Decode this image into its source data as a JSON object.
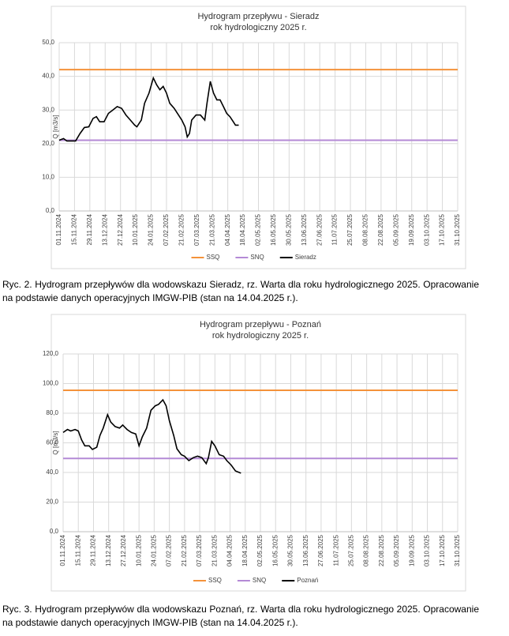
{
  "chart_data": [
    {
      "type": "line",
      "title": "Hydrogram przepływu - Sieradz",
      "subtitle": "rok hydrologiczny 2025 r.",
      "y_label": "Q [m3/s]",
      "xlim": [
        "01.11.2024",
        "31.10.2025"
      ],
      "xticks": [
        "01.11.2024",
        "15.11.2024",
        "29.11.2024",
        "13.12.2024",
        "27.12.2024",
        "10.01.2025",
        "24.01.2025",
        "07.02.2025",
        "21.02.2025",
        "07.03.2025",
        "21.03.2025",
        "04.04.2025",
        "18.04.2025",
        "02.05.2025",
        "16.05.2025",
        "30.05.2025",
        "13.06.2025",
        "27.06.2025",
        "11.07.2025",
        "25.07.2025",
        "08.08.2025",
        "22.08.2025",
        "05.09.2025",
        "19.09.2025",
        "03.10.2025",
        "17.10.2025",
        "31.10.2025"
      ],
      "ylim": [
        0,
        50
      ],
      "yticks": [
        {
          "value": 0,
          "label": "0,0"
        },
        {
          "value": 10,
          "label": "10,0"
        },
        {
          "value": 20,
          "label": "20,0"
        },
        {
          "value": 30,
          "label": "30,0"
        },
        {
          "value": 40,
          "label": "40,0"
        },
        {
          "value": 50,
          "label": "50,0"
        }
      ],
      "grid": true,
      "x": [
        "01.11.2024",
        "05.11.2024",
        "08.11.2024",
        "12.11.2024",
        "16.11.2024",
        "20.11.2024",
        "24.11.2024",
        "28.11.2024",
        "02.12.2024",
        "05.12.2024",
        "08.12.2024",
        "12.12.2024",
        "16.12.2024",
        "20.12.2024",
        "24.12.2024",
        "28.12.2024",
        "01.01.2025",
        "05.01.2025",
        "09.01.2025",
        "11.01.2025",
        "15.01.2025",
        "18.01.2025",
        "22.01.2025",
        "26.01.2025",
        "29.01.2025",
        "01.02.2025",
        "04.02.2025",
        "07.02.2025",
        "10.02.2025",
        "14.02.2025",
        "18.02.2025",
        "21.02.2025",
        "24.02.2025",
        "26.02.2025",
        "28.02.2025",
        "02.03.2025",
        "06.03.2025",
        "10.03.2025",
        "14.03.2025",
        "16.03.2025",
        "19.03.2025",
        "22.03.2025",
        "25.03.2025",
        "28.03.2025",
        "31.03.2025",
        "03.04.2025",
        "06.04.2025",
        "09.04.2025",
        "11.04.2025",
        "14.04.2025"
      ],
      "series": [
        {
          "name": "SSQ",
          "color": "#f4923a",
          "value": 42
        },
        {
          "name": "SNQ",
          "color": "#b48ad6",
          "value": 21
        },
        {
          "name": "Sieradz",
          "color": "#000000",
          "values": [
            21,
            21.5,
            20.8,
            20.8,
            20.8,
            23,
            24.8,
            25,
            27.5,
            28,
            26.5,
            26.5,
            29,
            30,
            31,
            30.5,
            28.5,
            27,
            25.5,
            25,
            27,
            32,
            35,
            39.5,
            37.5,
            36,
            37,
            35,
            32,
            30.5,
            28.5,
            27,
            25,
            22,
            23,
            27,
            28.5,
            28.5,
            27,
            32,
            38.5,
            35,
            33,
            33,
            31,
            29,
            28,
            26.5,
            25.5,
            25.5
          ]
        }
      ],
      "caption": "Ryc. 2. Hydrogram przepływów dla wodowskazu Sieradz, rz. Warta dla roku hydrologicznego 2025. Opracowanie na podstawie danych operacyjnych IMGW-PIB (stan na 14.04.2025 r.)."
    },
    {
      "type": "line",
      "title": "Hydrogram przepływu - Poznań",
      "subtitle": "rok hydrologiczny 2025 r.",
      "y_label": "Q [m3/s]",
      "xlim": [
        "01.11.2024",
        "31.10.2025"
      ],
      "xticks": [
        "01.11.2024",
        "15.11.2024",
        "29.11.2024",
        "13.12.2024",
        "27.12.2024",
        "10.01.2025",
        "24.01.2025",
        "07.02.2025",
        "21.02.2025",
        "07.03.2025",
        "21.03.2025",
        "04.04.2025",
        "18.04.2025",
        "02.05.2025",
        "16.05.2025",
        "30.05.2025",
        "13.06.2025",
        "27.06.2025",
        "11.07.2025",
        "25.07.2025",
        "08.08.2025",
        "22.08.2025",
        "05.09.2025",
        "19.09.2025",
        "03.10.2025",
        "17.10.2025",
        "31.10.2025"
      ],
      "ylim": [
        0,
        120
      ],
      "yticks": [
        {
          "value": 0,
          "label": "0,0"
        },
        {
          "value": 20,
          "label": "20,0"
        },
        {
          "value": 40,
          "label": "40,0"
        },
        {
          "value": 60,
          "label": "60,0"
        },
        {
          "value": 80,
          "label": "80,0"
        },
        {
          "value": 100,
          "label": "100,0"
        },
        {
          "value": 120,
          "label": "120,0"
        }
      ],
      "grid": true,
      "x": [
        "01.11.2024",
        "05.11.2024",
        "08.11.2024",
        "12.11.2024",
        "15.11.2024",
        "18.11.2024",
        "21.11.2024",
        "25.11.2024",
        "28.11.2024",
        "02.12.2024",
        "05.12.2024",
        "08.12.2024",
        "12.12.2024",
        "15.12.2024",
        "19.12.2024",
        "23.12.2024",
        "26.12.2024",
        "30.12.2024",
        "03.01.2025",
        "07.01.2025",
        "10.01.2025",
        "13.01.2025",
        "17.01.2025",
        "21.01.2025",
        "25.01.2025",
        "28.01.2025",
        "01.02.2025",
        "04.02.2025",
        "07.02.2025",
        "11.02.2025",
        "14.02.2025",
        "18.02.2025",
        "21.02.2025",
        "25.02.2025",
        "01.03.2025",
        "05.03.2025",
        "09.03.2025",
        "13.03.2025",
        "15.03.2025",
        "18.03.2025",
        "21.03.2025",
        "25.03.2025",
        "29.03.2025",
        "01.04.2025",
        "05.04.2025",
        "09.04.2025",
        "14.04.2025"
      ],
      "series": [
        {
          "name": "SSQ",
          "color": "#f4923a",
          "value": 95.5
        },
        {
          "name": "SNQ",
          "color": "#b48ad6",
          "value": 49.5
        },
        {
          "name": "Poznań",
          "color": "#000000",
          "values": [
            67,
            69,
            68,
            69,
            68,
            62,
            58,
            58,
            55.5,
            57,
            65,
            70,
            79,
            74,
            71,
            70,
            72,
            69,
            67,
            66,
            58,
            64,
            70,
            82,
            85,
            86,
            89,
            85,
            75,
            65,
            56,
            52,
            51,
            48,
            50,
            51,
            50,
            46,
            50,
            61,
            58,
            52,
            51,
            48,
            45,
            41,
            39.5
          ]
        }
      ],
      "caption": "Ryc. 3. Hydrogram przepływów dla wodowskazu Poznań, rz. Warta dla roku hydrologicznego 2025. Opracowanie na podstawie danych operacyjnych IMGW-PIB (stan na 14.04.2025 r.)."
    }
  ]
}
